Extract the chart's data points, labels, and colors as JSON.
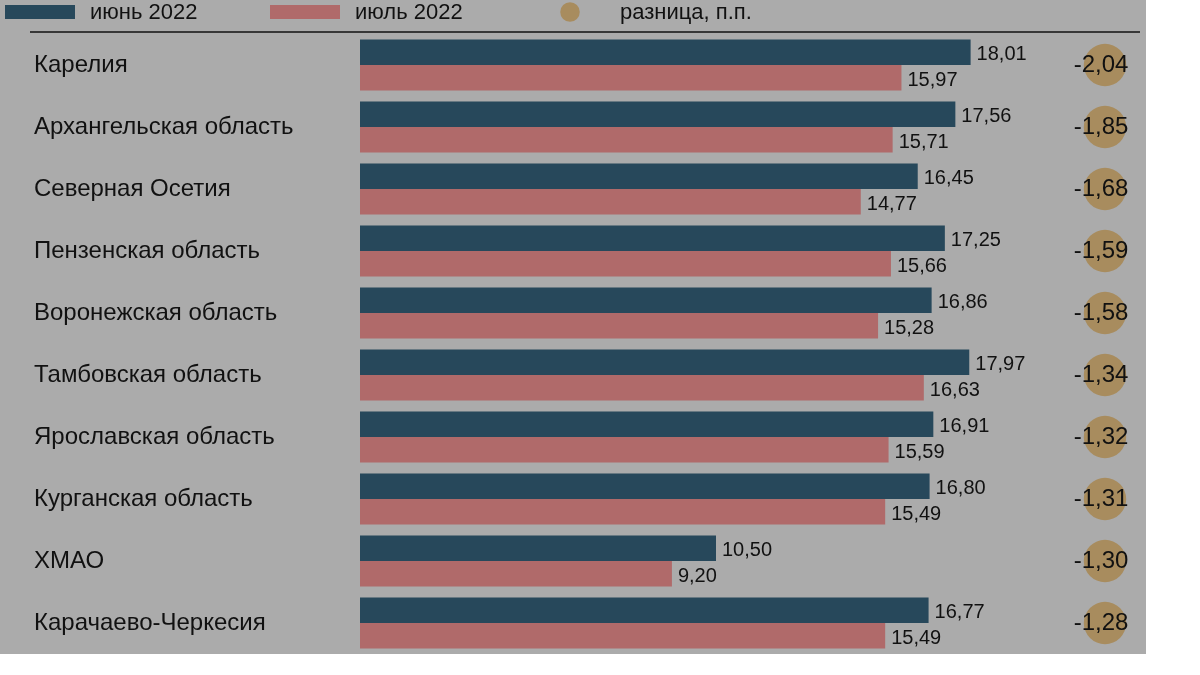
{
  "chart_data": [
    {
      "type": "bar",
      "orientation": "horizontal",
      "legend": "top",
      "categories": [
        "Карелия",
        "Архангельская область",
        "Северная Осетия",
        "Пензенская область",
        "Воронежская область",
        "Тамбовская область",
        "Ярославская область",
        "Курганская область",
        "ХМАО",
        "Карачаево-Черкесия"
      ],
      "series": [
        {
          "name": "июнь 2022",
          "color": "#27485b",
          "values": [
            18.01,
            17.56,
            16.45,
            17.25,
            16.86,
            17.97,
            16.91,
            16.8,
            10.5,
            16.77
          ],
          "value_labels": [
            "18,01",
            "17,56",
            "16,45",
            "17,25",
            "16,86",
            "17,97",
            "16,91",
            "16,80",
            "10,50",
            "16,77"
          ]
        },
        {
          "name": "июль 2022",
          "color": "#b06a6a",
          "values": [
            15.97,
            15.71,
            14.77,
            15.66,
            15.28,
            16.63,
            15.59,
            15.49,
            9.2,
            15.49
          ],
          "value_labels": [
            "15,97",
            "15,71",
            "14,77",
            "15,66",
            "15,28",
            "16,63",
            "15,59",
            "15,49",
            "9,20",
            "15,49"
          ]
        }
      ]
    },
    {
      "type": "other",
      "series": [
        {
          "name": "разница, п.п.",
          "color": "#a88c5e",
          "values": [
            -2.04,
            -1.85,
            -1.68,
            -1.59,
            -1.58,
            -1.34,
            -1.32,
            -1.31,
            -1.3,
            -1.28
          ],
          "value_labels": [
            "-2,04",
            "-1,85",
            "-1,68",
            "-1,59",
            "-1,58",
            "-1,34",
            "-1,32",
            "-1,31",
            "-1,30",
            "-1,28"
          ]
        }
      ]
    }
  ]
}
